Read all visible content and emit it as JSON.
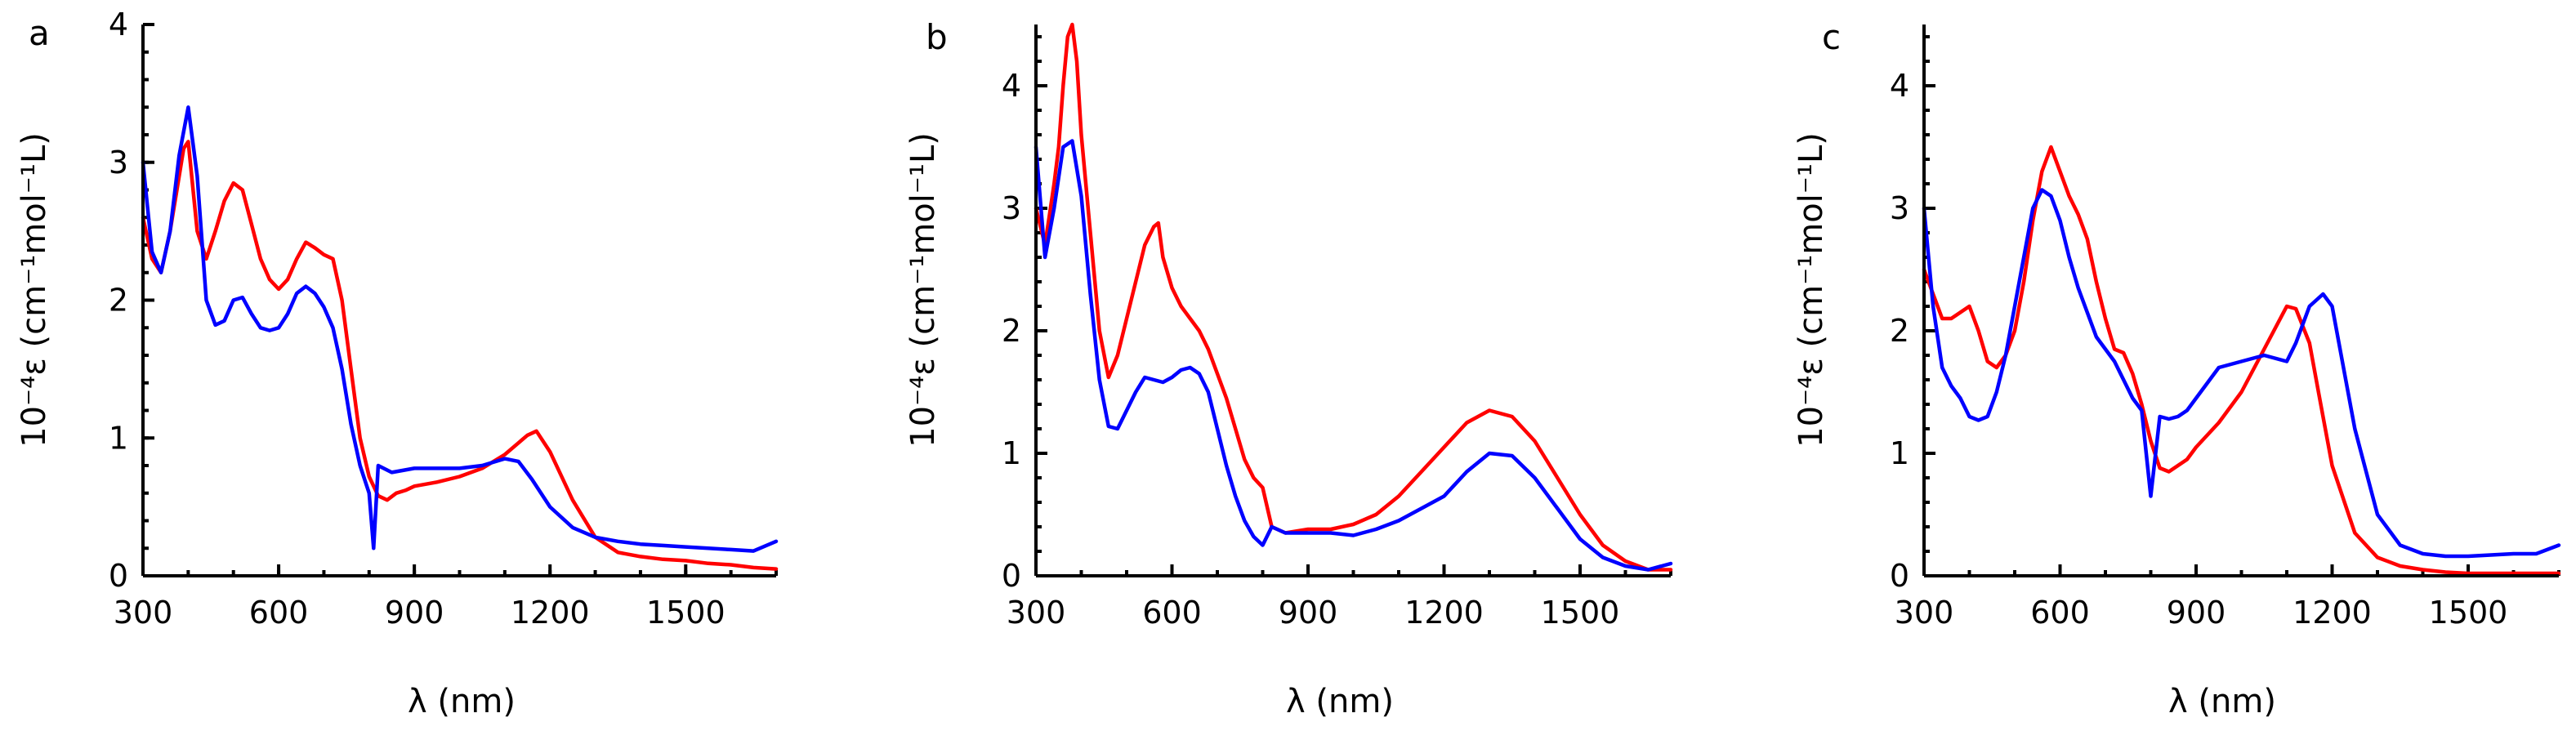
{
  "chart_data": [
    {
      "type": "line",
      "panel": "a",
      "xlabel": "λ (nm)",
      "ylabel": "10⁻⁴ε (cm⁻¹mol⁻¹L)",
      "xlim": [
        300,
        1700
      ],
      "ylim": [
        0,
        4
      ],
      "xticks": [
        300,
        600,
        900,
        1200,
        1500
      ],
      "yticks": [
        0,
        1,
        2,
        3,
        4
      ],
      "series": [
        {
          "name": "red",
          "color": "#ff0000",
          "x": [
            300,
            320,
            340,
            360,
            380,
            390,
            400,
            420,
            440,
            460,
            480,
            500,
            520,
            540,
            560,
            580,
            600,
            620,
            640,
            660,
            680,
            700,
            720,
            740,
            760,
            780,
            800,
            820,
            840,
            860,
            880,
            900,
            950,
            1000,
            1050,
            1100,
            1150,
            1170,
            1200,
            1250,
            1300,
            1350,
            1400,
            1450,
            1500,
            1550,
            1600,
            1650,
            1700
          ],
          "values": [
            2.6,
            2.3,
            2.2,
            2.5,
            2.9,
            3.1,
            3.15,
            2.5,
            2.3,
            2.5,
            2.72,
            2.85,
            2.8,
            2.55,
            2.3,
            2.15,
            2.08,
            2.15,
            2.3,
            2.42,
            2.38,
            2.33,
            2.3,
            2.0,
            1.5,
            1.0,
            0.72,
            0.58,
            0.55,
            0.6,
            0.62,
            0.65,
            0.68,
            0.72,
            0.78,
            0.88,
            1.02,
            1.05,
            0.9,
            0.55,
            0.28,
            0.17,
            0.14,
            0.12,
            0.11,
            0.09,
            0.08,
            0.06,
            0.05
          ]
        },
        {
          "name": "blue",
          "color": "#0000ff",
          "x": [
            300,
            320,
            340,
            360,
            380,
            400,
            420,
            440,
            460,
            480,
            500,
            520,
            540,
            560,
            580,
            600,
            620,
            640,
            660,
            680,
            700,
            720,
            740,
            760,
            780,
            800,
            810,
            820,
            850,
            900,
            950,
            1000,
            1050,
            1100,
            1130,
            1160,
            1200,
            1250,
            1300,
            1350,
            1400,
            1450,
            1500,
            1550,
            1600,
            1650,
            1700
          ],
          "values": [
            3.0,
            2.35,
            2.2,
            2.5,
            3.05,
            3.4,
            2.9,
            2.0,
            1.82,
            1.85,
            2.0,
            2.02,
            1.9,
            1.8,
            1.78,
            1.8,
            1.9,
            2.05,
            2.1,
            2.05,
            1.95,
            1.8,
            1.5,
            1.1,
            0.8,
            0.6,
            0.2,
            0.8,
            0.75,
            0.78,
            0.78,
            0.78,
            0.8,
            0.85,
            0.83,
            0.7,
            0.5,
            0.35,
            0.28,
            0.25,
            0.23,
            0.22,
            0.21,
            0.2,
            0.19,
            0.18,
            0.25
          ]
        }
      ]
    },
    {
      "type": "line",
      "panel": "b",
      "xlabel": "λ (nm)",
      "ylabel": "10⁻⁴ε (cm⁻¹mol⁻¹L)",
      "xlim": [
        300,
        1700
      ],
      "ylim": [
        0,
        4.5
      ],
      "xticks": [
        300,
        600,
        900,
        1200,
        1500
      ],
      "yticks": [
        0,
        1,
        2,
        3,
        4
      ],
      "series": [
        {
          "name": "red",
          "color": "#ff0000",
          "x": [
            300,
            320,
            340,
            350,
            360,
            370,
            380,
            390,
            400,
            420,
            440,
            460,
            480,
            500,
            520,
            540,
            560,
            570,
            580,
            600,
            620,
            640,
            660,
            680,
            700,
            720,
            740,
            760,
            780,
            800,
            820,
            850,
            900,
            950,
            1000,
            1050,
            1100,
            1150,
            1200,
            1250,
            1300,
            1350,
            1400,
            1450,
            1500,
            1550,
            1600,
            1650,
            1700
          ],
          "values": [
            3.0,
            2.7,
            3.2,
            3.5,
            4.0,
            4.4,
            4.5,
            4.2,
            3.6,
            2.8,
            2.0,
            1.62,
            1.8,
            2.1,
            2.4,
            2.7,
            2.85,
            2.88,
            2.6,
            2.35,
            2.2,
            2.1,
            2.0,
            1.85,
            1.65,
            1.45,
            1.2,
            0.95,
            0.8,
            0.72,
            0.4,
            0.35,
            0.38,
            0.38,
            0.42,
            0.5,
            0.65,
            0.85,
            1.05,
            1.25,
            1.35,
            1.3,
            1.1,
            0.8,
            0.5,
            0.25,
            0.12,
            0.05,
            0.05
          ]
        },
        {
          "name": "blue",
          "color": "#0000ff",
          "x": [
            300,
            320,
            340,
            360,
            380,
            400,
            420,
            440,
            460,
            480,
            500,
            520,
            540,
            560,
            580,
            600,
            620,
            640,
            660,
            680,
            700,
            720,
            740,
            760,
            780,
            800,
            820,
            850,
            900,
            950,
            1000,
            1050,
            1100,
            1150,
            1200,
            1250,
            1300,
            1350,
            1400,
            1450,
            1500,
            1550,
            1600,
            1650,
            1700
          ],
          "values": [
            3.5,
            2.6,
            3.0,
            3.5,
            3.55,
            3.1,
            2.3,
            1.6,
            1.22,
            1.2,
            1.35,
            1.5,
            1.62,
            1.6,
            1.58,
            1.62,
            1.68,
            1.7,
            1.65,
            1.5,
            1.2,
            0.9,
            0.65,
            0.45,
            0.32,
            0.25,
            0.4,
            0.35,
            0.35,
            0.35,
            0.33,
            0.38,
            0.45,
            0.55,
            0.65,
            0.85,
            1.0,
            0.98,
            0.8,
            0.55,
            0.3,
            0.15,
            0.08,
            0.05,
            0.1
          ]
        }
      ]
    },
    {
      "type": "line",
      "panel": "c",
      "xlabel": "λ (nm)",
      "ylabel": "10⁻⁴ε (cm⁻¹mol⁻¹L)",
      "xlim": [
        300,
        1700
      ],
      "ylim": [
        0,
        4.5
      ],
      "xticks": [
        300,
        600,
        900,
        1200,
        1500
      ],
      "yticks": [
        0,
        1,
        2,
        3,
        4
      ],
      "series": [
        {
          "name": "red",
          "color": "#ff0000",
          "x": [
            300,
            320,
            340,
            360,
            380,
            400,
            420,
            440,
            460,
            480,
            500,
            520,
            540,
            560,
            580,
            600,
            620,
            640,
            660,
            680,
            700,
            720,
            740,
            760,
            780,
            800,
            820,
            840,
            860,
            880,
            900,
            950,
            1000,
            1050,
            1100,
            1120,
            1150,
            1170,
            1200,
            1250,
            1300,
            1350,
            1400,
            1450,
            1500,
            1550,
            1600,
            1650,
            1700
          ],
          "values": [
            2.5,
            2.3,
            2.1,
            2.1,
            2.15,
            2.2,
            2.0,
            1.75,
            1.7,
            1.8,
            2.0,
            2.4,
            2.9,
            3.3,
            3.5,
            3.3,
            3.1,
            2.95,
            2.75,
            2.4,
            2.1,
            1.85,
            1.82,
            1.65,
            1.4,
            1.1,
            0.88,
            0.85,
            0.9,
            0.95,
            1.05,
            1.25,
            1.5,
            1.85,
            2.2,
            2.18,
            1.9,
            1.5,
            0.9,
            0.35,
            0.15,
            0.08,
            0.05,
            0.03,
            0.02,
            0.02,
            0.02,
            0.02,
            0.02
          ]
        },
        {
          "name": "blue",
          "color": "#0000ff",
          "x": [
            300,
            320,
            340,
            360,
            380,
            400,
            420,
            440,
            460,
            480,
            500,
            520,
            540,
            560,
            580,
            600,
            620,
            640,
            660,
            680,
            700,
            720,
            740,
            760,
            780,
            800,
            820,
            840,
            860,
            880,
            900,
            950,
            1000,
            1050,
            1100,
            1120,
            1150,
            1180,
            1200,
            1220,
            1250,
            1300,
            1350,
            1400,
            1450,
            1500,
            1550,
            1600,
            1650,
            1700
          ],
          "values": [
            3.0,
            2.2,
            1.7,
            1.55,
            1.45,
            1.3,
            1.27,
            1.3,
            1.5,
            1.8,
            2.2,
            2.6,
            3.0,
            3.15,
            3.1,
            2.9,
            2.6,
            2.35,
            2.15,
            1.95,
            1.85,
            1.75,
            1.6,
            1.45,
            1.35,
            0.65,
            1.3,
            1.28,
            1.3,
            1.35,
            1.45,
            1.7,
            1.75,
            1.8,
            1.75,
            1.9,
            2.2,
            2.3,
            2.2,
            1.8,
            1.2,
            0.5,
            0.25,
            0.18,
            0.16,
            0.16,
            0.17,
            0.18,
            0.18,
            0.25
          ]
        }
      ]
    }
  ]
}
